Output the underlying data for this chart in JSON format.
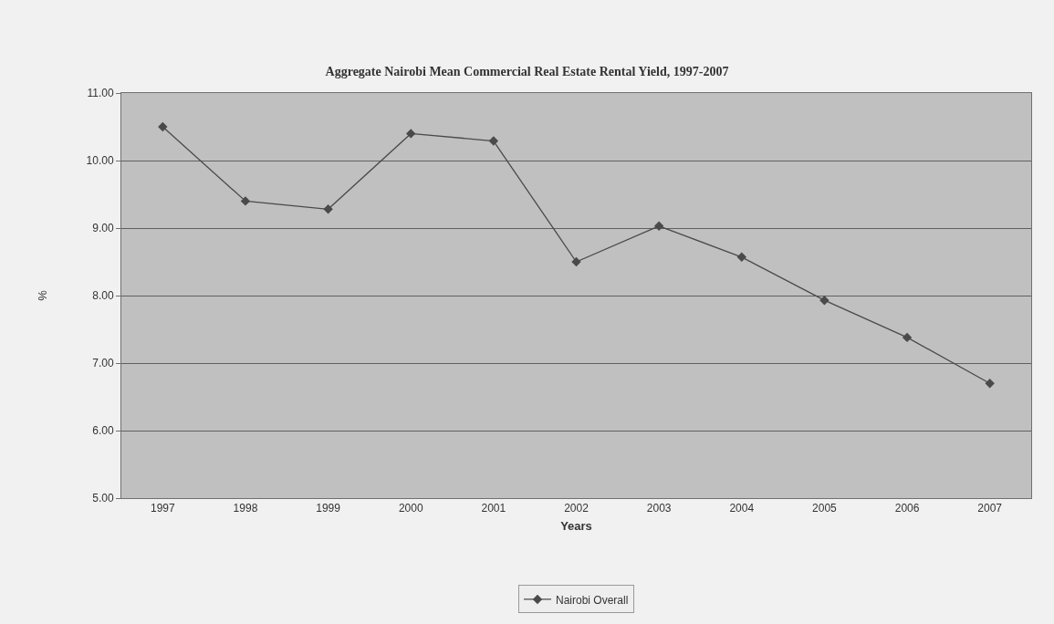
{
  "chart_data": {
    "type": "line",
    "title": "Aggregate Nairobi Mean Commercial Real Estate Rental Yield, 1997-2007",
    "xlabel": "Years",
    "ylabel": "%",
    "categories": [
      "1997",
      "1998",
      "1999",
      "2000",
      "2001",
      "2002",
      "2003",
      "2004",
      "2005",
      "2006",
      "2007"
    ],
    "series": [
      {
        "name": "Nairobi Overall",
        "color": "#4a4a4a",
        "values": [
          10.5,
          9.4,
          9.28,
          10.4,
          10.29,
          8.5,
          9.03,
          8.57,
          7.93,
          7.38,
          6.7
        ]
      }
    ],
    "ylim": [
      5,
      11
    ],
    "yticks": [
      {
        "value": 5,
        "label": "5.00"
      },
      {
        "value": 6,
        "label": "6.00"
      },
      {
        "value": 7,
        "label": "7.00"
      },
      {
        "value": 8,
        "label": "8.00"
      },
      {
        "value": 9,
        "label": "9.00"
      },
      {
        "value": 10,
        "label": "10.00"
      },
      {
        "value": 11,
        "label": "11.00"
      }
    ],
    "grid": "y",
    "legend": "bottom",
    "marker": "diamond",
    "line_style": "solid"
  }
}
